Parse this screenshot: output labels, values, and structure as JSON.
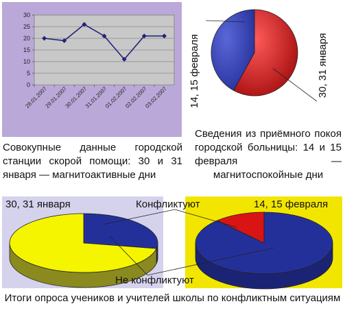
{
  "captions": {
    "line_chart": "Совокупные данные городской станции скорой помощи: 30 и 31 января — магнитоактивные дни",
    "admission_pie": "Сведения из приёмного покоя городской больницы: 14 и 15 февраля — магнитоспокойные дни",
    "survey": "Итоги опроса учеников и учителей школы по конфликтным ситуациям"
  },
  "labels": {
    "feb_vertical": "14, 15 февраля",
    "jan_vertical": "30, 31 января",
    "survey_jan": "30, 31 января",
    "survey_feb": "14, 15 февраля",
    "conflict": "Конфликтуют",
    "no_conflict": "Не конфликтуют"
  },
  "colors": {
    "line_panel_bg": "#b9a8d8",
    "line_plot_bg": "#c8c8c8",
    "line_series": "#23237a",
    "survey_jan_panel_bg": "#d5d2ec",
    "survey_feb_panel_bg": "#f2e600",
    "pie_blue": "#24309a",
    "pie_red": "#d91414",
    "pie_yellow": "#f5f500",
    "pie_olive": "#8a8a1e"
  },
  "chart_data": [
    {
      "type": "line",
      "title": "",
      "xlabel": "",
      "ylabel": "",
      "x": [
        "28.01.2007",
        "29.01.2007",
        "30.01.2007",
        "31.01.2007",
        "01.02.2007",
        "02.02.2007",
        "03.02.2007"
      ],
      "yticks": [
        0,
        5,
        10,
        15,
        20,
        25,
        30
      ],
      "ylim": [
        0,
        30
      ],
      "grid": true,
      "series": [
        {
          "values": [
            20,
            19,
            26,
            21,
            11,
            21,
            21
          ]
        }
      ]
    },
    {
      "type": "pie",
      "title": "",
      "slices": [
        {
          "label": "14, 15 февраля",
          "value": 42,
          "color": "#24309a"
        },
        {
          "label": "30, 31 января",
          "value": 58,
          "color": "#d91414"
        }
      ]
    },
    {
      "type": "pie",
      "title": "30, 31 января",
      "slices": [
        {
          "label": "Конфликтуют",
          "value": 28,
          "color": "#24309a"
        },
        {
          "label": "Не конфликтуют",
          "value": 72,
          "color": "#f5f500"
        }
      ]
    },
    {
      "type": "pie",
      "title": "14, 15 февраля",
      "slices": [
        {
          "label": "Конфликтуют",
          "value": 12,
          "color": "#d91414"
        },
        {
          "label": "Не конфликтуют",
          "value": 88,
          "color": "#24309a"
        }
      ]
    }
  ]
}
